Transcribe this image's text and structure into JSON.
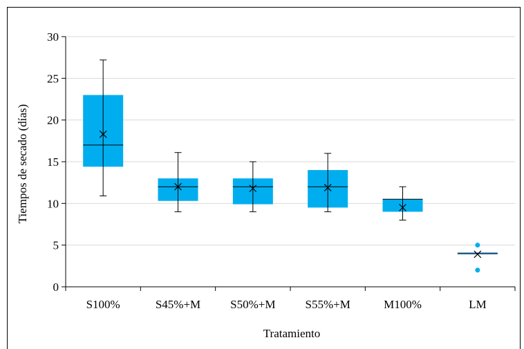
{
  "chart_data": {
    "type": "boxplot",
    "xlabel": "Tratamiento",
    "ylabel": "Tiempos de secado (días)",
    "ylim": [
      0,
      30
    ],
    "yticks": [
      0,
      5,
      10,
      15,
      20,
      25,
      30
    ],
    "grid": true,
    "categories": [
      "S100%",
      "S45%+M",
      "S50%+M",
      "S55%+M",
      "M100%",
      "LM"
    ],
    "boxes": [
      {
        "category": "S100%",
        "min": 10.9,
        "q1": 14.4,
        "median": 17.0,
        "q3": 23.0,
        "max": 27.2,
        "mean": 18.3,
        "outliers": []
      },
      {
        "category": "S45%+M",
        "min": 9.0,
        "q1": 10.3,
        "median": 12.0,
        "q3": 13.0,
        "max": 16.1,
        "mean": 12.0,
        "outliers": []
      },
      {
        "category": "S50%+M",
        "min": 9.0,
        "q1": 9.9,
        "median": 12.0,
        "q3": 13.0,
        "max": 15.0,
        "mean": 11.8,
        "outliers": []
      },
      {
        "category": "S55%+M",
        "min": 9.0,
        "q1": 9.5,
        "median": 12.0,
        "q3": 14.0,
        "max": 16.0,
        "mean": 11.9,
        "outliers": []
      },
      {
        "category": "M100%",
        "min": 8.0,
        "q1": 9.0,
        "median": 10.5,
        "q3": 10.5,
        "max": 12.0,
        "mean": 9.5,
        "outliers": []
      },
      {
        "category": "LM",
        "min": 4.0,
        "q1": 4.0,
        "median": 4.0,
        "q3": 4.0,
        "max": 4.0,
        "mean": 3.9,
        "outliers": [
          5.0,
          2.0
        ]
      }
    ],
    "colors": {
      "box": "#00AEEF",
      "median_lm": "#1F5C86",
      "grid": "#D9D9D9",
      "line": "#000000"
    }
  }
}
